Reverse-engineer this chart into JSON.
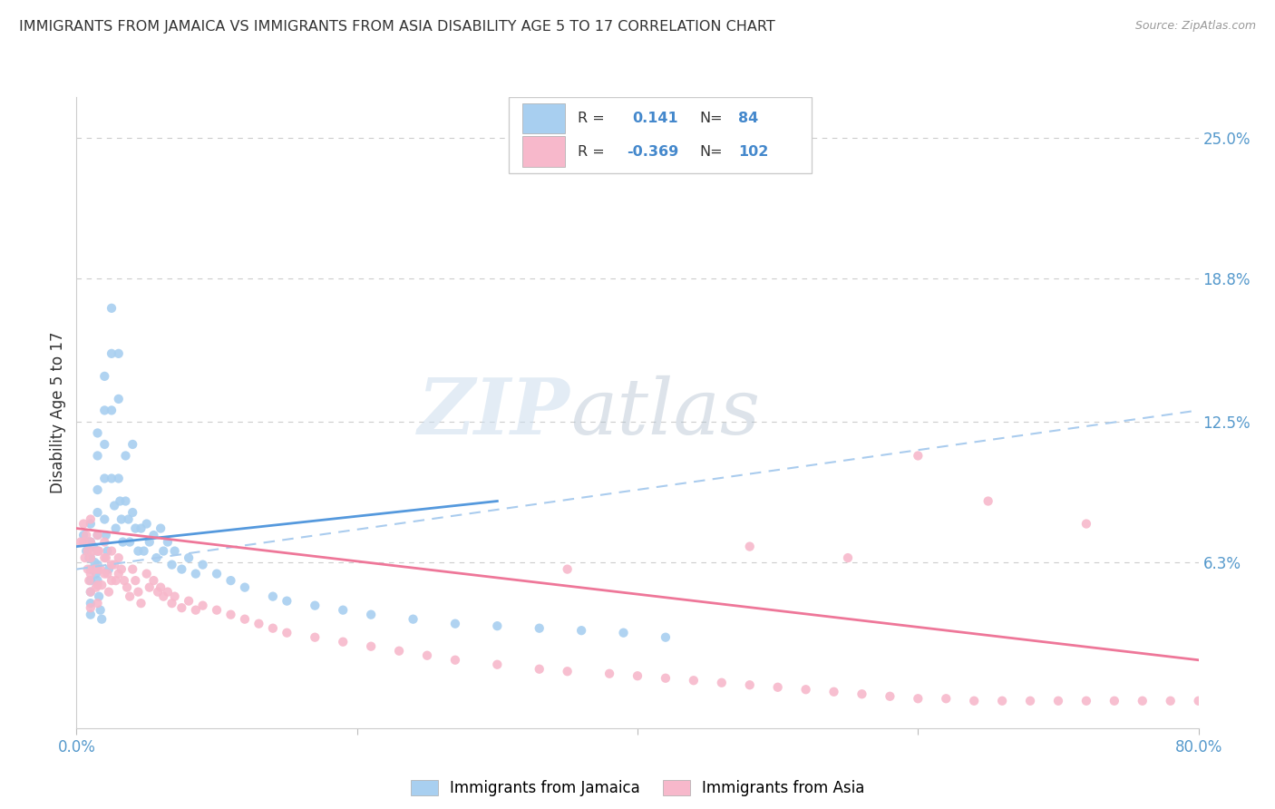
{
  "title": "IMMIGRANTS FROM JAMAICA VS IMMIGRANTS FROM ASIA DISABILITY AGE 5 TO 17 CORRELATION CHART",
  "source": "Source: ZipAtlas.com",
  "ylabel_label": "Disability Age 5 to 17",
  "ytick_labels": [
    "6.3%",
    "12.5%",
    "18.8%",
    "25.0%"
  ],
  "ytick_values": [
    0.063,
    0.125,
    0.188,
    0.25
  ],
  "xlim": [
    0.0,
    0.8
  ],
  "ylim": [
    -0.01,
    0.268
  ],
  "jamaica_color": "#a8cff0",
  "asia_color": "#f7b8cb",
  "jamaica_R": 0.141,
  "jamaica_N": 84,
  "asia_R": -0.369,
  "asia_N": 102,
  "jamaica_line_color": "#5599dd",
  "asia_line_color": "#ee7799",
  "dash_line_color": "#aaccee",
  "watermark_zip": "ZIP",
  "watermark_atlas": "atlas",
  "legend_box_color": "#ddeeee",
  "jamaica_scatter_x": [
    0.005,
    0.007,
    0.008,
    0.009,
    0.01,
    0.01,
    0.01,
    0.01,
    0.01,
    0.01,
    0.01,
    0.01,
    0.012,
    0.013,
    0.014,
    0.015,
    0.015,
    0.015,
    0.015,
    0.015,
    0.015,
    0.015,
    0.015,
    0.016,
    0.017,
    0.018,
    0.02,
    0.02,
    0.02,
    0.02,
    0.02,
    0.021,
    0.022,
    0.023,
    0.025,
    0.025,
    0.025,
    0.025,
    0.027,
    0.028,
    0.03,
    0.03,
    0.03,
    0.031,
    0.032,
    0.033,
    0.035,
    0.035,
    0.037,
    0.038,
    0.04,
    0.04,
    0.042,
    0.044,
    0.046,
    0.048,
    0.05,
    0.052,
    0.055,
    0.057,
    0.06,
    0.062,
    0.065,
    0.068,
    0.07,
    0.075,
    0.08,
    0.085,
    0.09,
    0.1,
    0.11,
    0.12,
    0.14,
    0.15,
    0.17,
    0.19,
    0.21,
    0.24,
    0.27,
    0.3,
    0.33,
    0.36,
    0.39,
    0.42
  ],
  "jamaica_scatter_y": [
    0.075,
    0.068,
    0.072,
    0.065,
    0.08,
    0.072,
    0.065,
    0.06,
    0.055,
    0.05,
    0.045,
    0.04,
    0.07,
    0.063,
    0.058,
    0.12,
    0.11,
    0.095,
    0.085,
    0.075,
    0.068,
    0.062,
    0.055,
    0.048,
    0.042,
    0.038,
    0.145,
    0.13,
    0.115,
    0.1,
    0.082,
    0.075,
    0.068,
    0.06,
    0.175,
    0.155,
    0.13,
    0.1,
    0.088,
    0.078,
    0.155,
    0.135,
    0.1,
    0.09,
    0.082,
    0.072,
    0.11,
    0.09,
    0.082,
    0.072,
    0.115,
    0.085,
    0.078,
    0.068,
    0.078,
    0.068,
    0.08,
    0.072,
    0.075,
    0.065,
    0.078,
    0.068,
    0.072,
    0.062,
    0.068,
    0.06,
    0.065,
    0.058,
    0.062,
    0.058,
    0.055,
    0.052,
    0.048,
    0.046,
    0.044,
    0.042,
    0.04,
    0.038,
    0.036,
    0.035,
    0.034,
    0.033,
    0.032,
    0.03
  ],
  "asia_scatter_x": [
    0.003,
    0.005,
    0.005,
    0.006,
    0.007,
    0.008,
    0.008,
    0.009,
    0.01,
    0.01,
    0.01,
    0.01,
    0.01,
    0.01,
    0.012,
    0.013,
    0.014,
    0.015,
    0.015,
    0.015,
    0.015,
    0.015,
    0.016,
    0.017,
    0.018,
    0.02,
    0.02,
    0.02,
    0.021,
    0.022,
    0.023,
    0.025,
    0.025,
    0.025,
    0.027,
    0.028,
    0.03,
    0.03,
    0.032,
    0.034,
    0.036,
    0.038,
    0.04,
    0.042,
    0.044,
    0.046,
    0.05,
    0.052,
    0.055,
    0.058,
    0.06,
    0.062,
    0.065,
    0.068,
    0.07,
    0.075,
    0.08,
    0.085,
    0.09,
    0.1,
    0.11,
    0.12,
    0.13,
    0.14,
    0.15,
    0.17,
    0.19,
    0.21,
    0.23,
    0.25,
    0.27,
    0.3,
    0.33,
    0.35,
    0.38,
    0.4,
    0.42,
    0.44,
    0.46,
    0.48,
    0.5,
    0.52,
    0.54,
    0.56,
    0.58,
    0.6,
    0.62,
    0.64,
    0.66,
    0.68,
    0.7,
    0.72,
    0.74,
    0.76,
    0.78,
    0.8,
    0.55,
    0.6,
    0.65,
    0.72,
    0.48,
    0.35
  ],
  "asia_scatter_y": [
    0.072,
    0.08,
    0.072,
    0.065,
    0.075,
    0.068,
    0.06,
    0.055,
    0.082,
    0.072,
    0.065,
    0.058,
    0.05,
    0.043,
    0.068,
    0.06,
    0.052,
    0.075,
    0.068,
    0.06,
    0.053,
    0.045,
    0.068,
    0.06,
    0.053,
    0.072,
    0.065,
    0.058,
    0.065,
    0.058,
    0.05,
    0.068,
    0.062,
    0.055,
    0.062,
    0.055,
    0.065,
    0.058,
    0.06,
    0.055,
    0.052,
    0.048,
    0.06,
    0.055,
    0.05,
    0.045,
    0.058,
    0.052,
    0.055,
    0.05,
    0.052,
    0.048,
    0.05,
    0.045,
    0.048,
    0.043,
    0.046,
    0.042,
    0.044,
    0.042,
    0.04,
    0.038,
    0.036,
    0.034,
    0.032,
    0.03,
    0.028,
    0.026,
    0.024,
    0.022,
    0.02,
    0.018,
    0.016,
    0.015,
    0.014,
    0.013,
    0.012,
    0.011,
    0.01,
    0.009,
    0.008,
    0.007,
    0.006,
    0.005,
    0.004,
    0.003,
    0.003,
    0.002,
    0.002,
    0.002,
    0.002,
    0.002,
    0.002,
    0.002,
    0.002,
    0.002,
    0.065,
    0.11,
    0.09,
    0.08,
    0.07,
    0.06
  ]
}
